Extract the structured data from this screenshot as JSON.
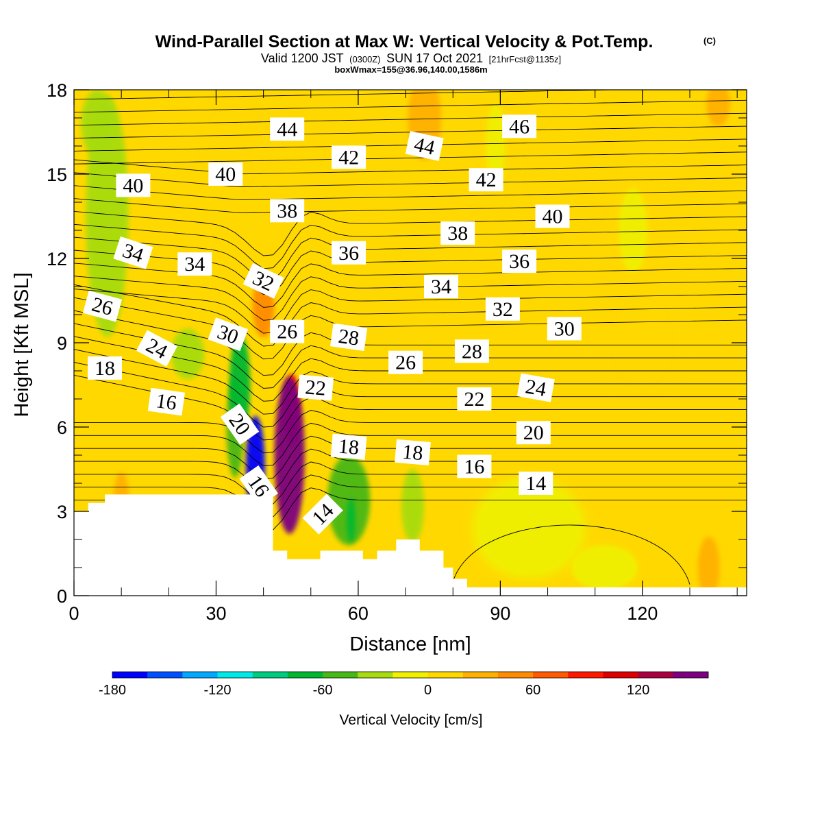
{
  "header": {
    "title": "Wind-Parallel Section at Max W: Vertical Velocity & Pot.Temp.",
    "title_mark": "(C)",
    "valid_prefix": "Valid 1200 JST",
    "valid_utc": "(0300Z)",
    "valid_date": "SUN 17 Oct 2021",
    "forecast": "[21hrFcst@1135z]",
    "box_info": "boxWmax=155@36.96,140.00,1586m"
  },
  "chart_data": {
    "type": "heatmap",
    "xlabel": "Distance [nm]",
    "ylabel": "Height [Kft MSL]",
    "xlim": [
      0,
      142
    ],
    "ylim": [
      0,
      18
    ],
    "xticks": [
      0,
      30,
      60,
      90,
      120
    ],
    "yticks": [
      0,
      3,
      6,
      9,
      12,
      15,
      18
    ],
    "xminor_step": 10,
    "yminor_step": 1,
    "terrain": {
      "x": [
        0,
        3,
        3,
        6.5,
        6.5,
        42,
        42,
        45,
        45,
        52,
        52,
        61,
        61,
        64,
        64,
        68,
        68,
        73,
        73,
        78,
        78,
        80,
        80,
        83,
        83,
        86,
        86,
        142
      ],
      "top_kft": [
        3,
        3,
        3.3,
        3.3,
        3.6,
        3.6,
        1.6,
        1.6,
        1.3,
        1.3,
        1.6,
        1.6,
        1.3,
        1.3,
        1.6,
        1.6,
        2.0,
        2.0,
        1.6,
        1.6,
        1.0,
        1.0,
        0.6,
        0.6,
        0.3,
        0.3,
        0.3,
        0.3
      ]
    },
    "vertical_velocity_features": [
      {
        "x": 45.5,
        "y": 5.0,
        "rx": 3.2,
        "ry": 2.8,
        "value": 155
      },
      {
        "x": 46.0,
        "y": 6.6,
        "rx": 1.6,
        "ry": 1.3,
        "value": 90
      },
      {
        "x": 38.3,
        "y": 4.6,
        "rx": 2.0,
        "ry": 1.8,
        "value": -165
      },
      {
        "x": 35.0,
        "y": 7.5,
        "rx": 2.2,
        "ry": 1.8,
        "value": -70
      },
      {
        "x": 34.0,
        "y": 6.0,
        "rx": 1.8,
        "ry": 1.8,
        "value": -55
      },
      {
        "x": 40.0,
        "y": 10.3,
        "rx": 2.3,
        "ry": 1.1,
        "value": 40
      },
      {
        "x": 10.0,
        "y": 3.5,
        "rx": 1.6,
        "ry": 0.9,
        "value": 35
      },
      {
        "x": 7.0,
        "y": 13.5,
        "rx": 4.5,
        "ry": 4.3,
        "value": -40
      },
      {
        "x": 5.0,
        "y": 16.8,
        "rx": 3.5,
        "ry": 1.2,
        "value": -40
      },
      {
        "x": 58.0,
        "y": 3.4,
        "rx": 4.5,
        "ry": 1.6,
        "value": -45
      },
      {
        "x": 58.5,
        "y": 2.7,
        "rx": 0.9,
        "ry": 0.8,
        "value": -75
      },
      {
        "x": 71.5,
        "y": 3.2,
        "rx": 2.4,
        "ry": 1.3,
        "value": -30
      },
      {
        "x": 24.0,
        "y": 8.6,
        "rx": 3.5,
        "ry": 0.9,
        "value": -25
      },
      {
        "x": 98.0,
        "y": 7.8,
        "rx": 7.0,
        "ry": 1.8,
        "value": 18
      },
      {
        "x": 120.0,
        "y": 9.0,
        "rx": 9.0,
        "ry": 2.0,
        "value": 15
      },
      {
        "x": 105.0,
        "y": 15.0,
        "rx": 12.0,
        "ry": 2.5,
        "value": 18
      },
      {
        "x": 34.0,
        "y": 16.0,
        "rx": 10.0,
        "ry": 1.8,
        "value": 18
      },
      {
        "x": 134.0,
        "y": 1.0,
        "rx": 2.3,
        "ry": 1.1,
        "value": 32
      },
      {
        "x": 112.0,
        "y": 1.0,
        "rx": 7.0,
        "ry": 0.8,
        "value": -18
      },
      {
        "x": 118.0,
        "y": 13.0,
        "rx": 3.0,
        "ry": 1.5,
        "value": -20
      },
      {
        "x": 96.0,
        "y": 2.4,
        "rx": 12.0,
        "ry": 1.8,
        "value": -15
      },
      {
        "x": 136.0,
        "y": 17.5,
        "rx": 2.5,
        "ry": 0.8,
        "value": 30
      },
      {
        "x": 74.0,
        "y": 17.0,
        "rx": 3.5,
        "ry": 1.5,
        "value": 25
      },
      {
        "x": 89.0,
        "y": 16.0,
        "rx": 2.0,
        "ry": 1.5,
        "value": -15
      }
    ],
    "potential_temperature_labels": [
      {
        "text": "44",
        "x": 45.0,
        "y": 16.6,
        "angle": 0
      },
      {
        "text": "44",
        "x": 74.0,
        "y": 16.0,
        "angle": 12
      },
      {
        "text": "46",
        "x": 94.0,
        "y": 16.7,
        "angle": 0
      },
      {
        "text": "42",
        "x": 58.0,
        "y": 15.6,
        "angle": 0
      },
      {
        "text": "42",
        "x": 87.0,
        "y": 14.8,
        "angle": 0
      },
      {
        "text": "40",
        "x": 12.5,
        "y": 14.6,
        "angle": 0
      },
      {
        "text": "40",
        "x": 32.0,
        "y": 15.0,
        "angle": 0
      },
      {
        "text": "40",
        "x": 101.0,
        "y": 13.5,
        "angle": 0
      },
      {
        "text": "38",
        "x": 45.0,
        "y": 13.7,
        "angle": 0
      },
      {
        "text": "38",
        "x": 81.0,
        "y": 12.9,
        "angle": 0
      },
      {
        "text": "36",
        "x": 58.0,
        "y": 12.2,
        "angle": 0
      },
      {
        "text": "36",
        "x": 94.0,
        "y": 11.9,
        "angle": 0
      },
      {
        "text": "34",
        "x": 12.5,
        "y": 12.2,
        "angle": 18
      },
      {
        "text": "34",
        "x": 25.5,
        "y": 11.8,
        "angle": 0
      },
      {
        "text": "34",
        "x": 77.5,
        "y": 11.0,
        "angle": 0
      },
      {
        "text": "32",
        "x": 40.0,
        "y": 11.2,
        "angle": 25
      },
      {
        "text": "32",
        "x": 90.5,
        "y": 10.2,
        "angle": 0
      },
      {
        "text": "30",
        "x": 32.5,
        "y": 9.3,
        "angle": 20
      },
      {
        "text": "30",
        "x": 103.5,
        "y": 9.5,
        "angle": 0
      },
      {
        "text": "28",
        "x": 58.0,
        "y": 9.2,
        "angle": 8
      },
      {
        "text": "28",
        "x": 84.0,
        "y": 8.7,
        "angle": 0
      },
      {
        "text": "26",
        "x": 6.0,
        "y": 10.3,
        "angle": 15
      },
      {
        "text": "26",
        "x": 45.0,
        "y": 9.4,
        "angle": 0
      },
      {
        "text": "26",
        "x": 70.0,
        "y": 8.3,
        "angle": 0
      },
      {
        "text": "24",
        "x": 17.5,
        "y": 8.8,
        "angle": 28
      },
      {
        "text": "24",
        "x": 97.5,
        "y": 7.4,
        "angle": 10
      },
      {
        "text": "22",
        "x": 51.0,
        "y": 7.4,
        "angle": 5
      },
      {
        "text": "22",
        "x": 84.5,
        "y": 7.0,
        "angle": 0
      },
      {
        "text": "20",
        "x": 35.0,
        "y": 6.1,
        "angle": 55
      },
      {
        "text": "20",
        "x": 97.0,
        "y": 5.8,
        "angle": 0
      },
      {
        "text": "18",
        "x": 6.5,
        "y": 8.1,
        "angle": 0
      },
      {
        "text": "18",
        "x": 58.0,
        "y": 5.3,
        "angle": 5
      },
      {
        "text": "18",
        "x": 71.5,
        "y": 5.1,
        "angle": 5
      },
      {
        "text": "16",
        "x": 19.5,
        "y": 6.9,
        "angle": 8
      },
      {
        "text": "16",
        "x": 39.0,
        "y": 3.9,
        "angle": 55
      },
      {
        "text": "16",
        "x": 84.5,
        "y": 4.6,
        "angle": 0
      },
      {
        "text": "14",
        "x": 52.5,
        "y": 2.9,
        "angle": -45
      },
      {
        "text": "14",
        "x": 97.5,
        "y": 4.0,
        "angle": 0
      }
    ],
    "colorbar": {
      "label": "Vertical Velocity [cm/s]",
      "min": -180,
      "max": 160,
      "step": 20,
      "tick_values": [
        -180,
        -120,
        -60,
        0,
        60,
        120
      ],
      "tick_labels": [
        "-180",
        "-120",
        "-60",
        "0",
        "60",
        "120"
      ],
      "colors": [
        "#0000ff",
        "#0050ff",
        "#00a8ff",
        "#00e8e8",
        "#00cc80",
        "#00b830",
        "#48b818",
        "#a8dc10",
        "#f0f000",
        "#ffd800",
        "#ffb000",
        "#ff8c00",
        "#ff5a00",
        "#ff1800",
        "#dc0000",
        "#aa0040",
        "#7c0080"
      ]
    }
  }
}
